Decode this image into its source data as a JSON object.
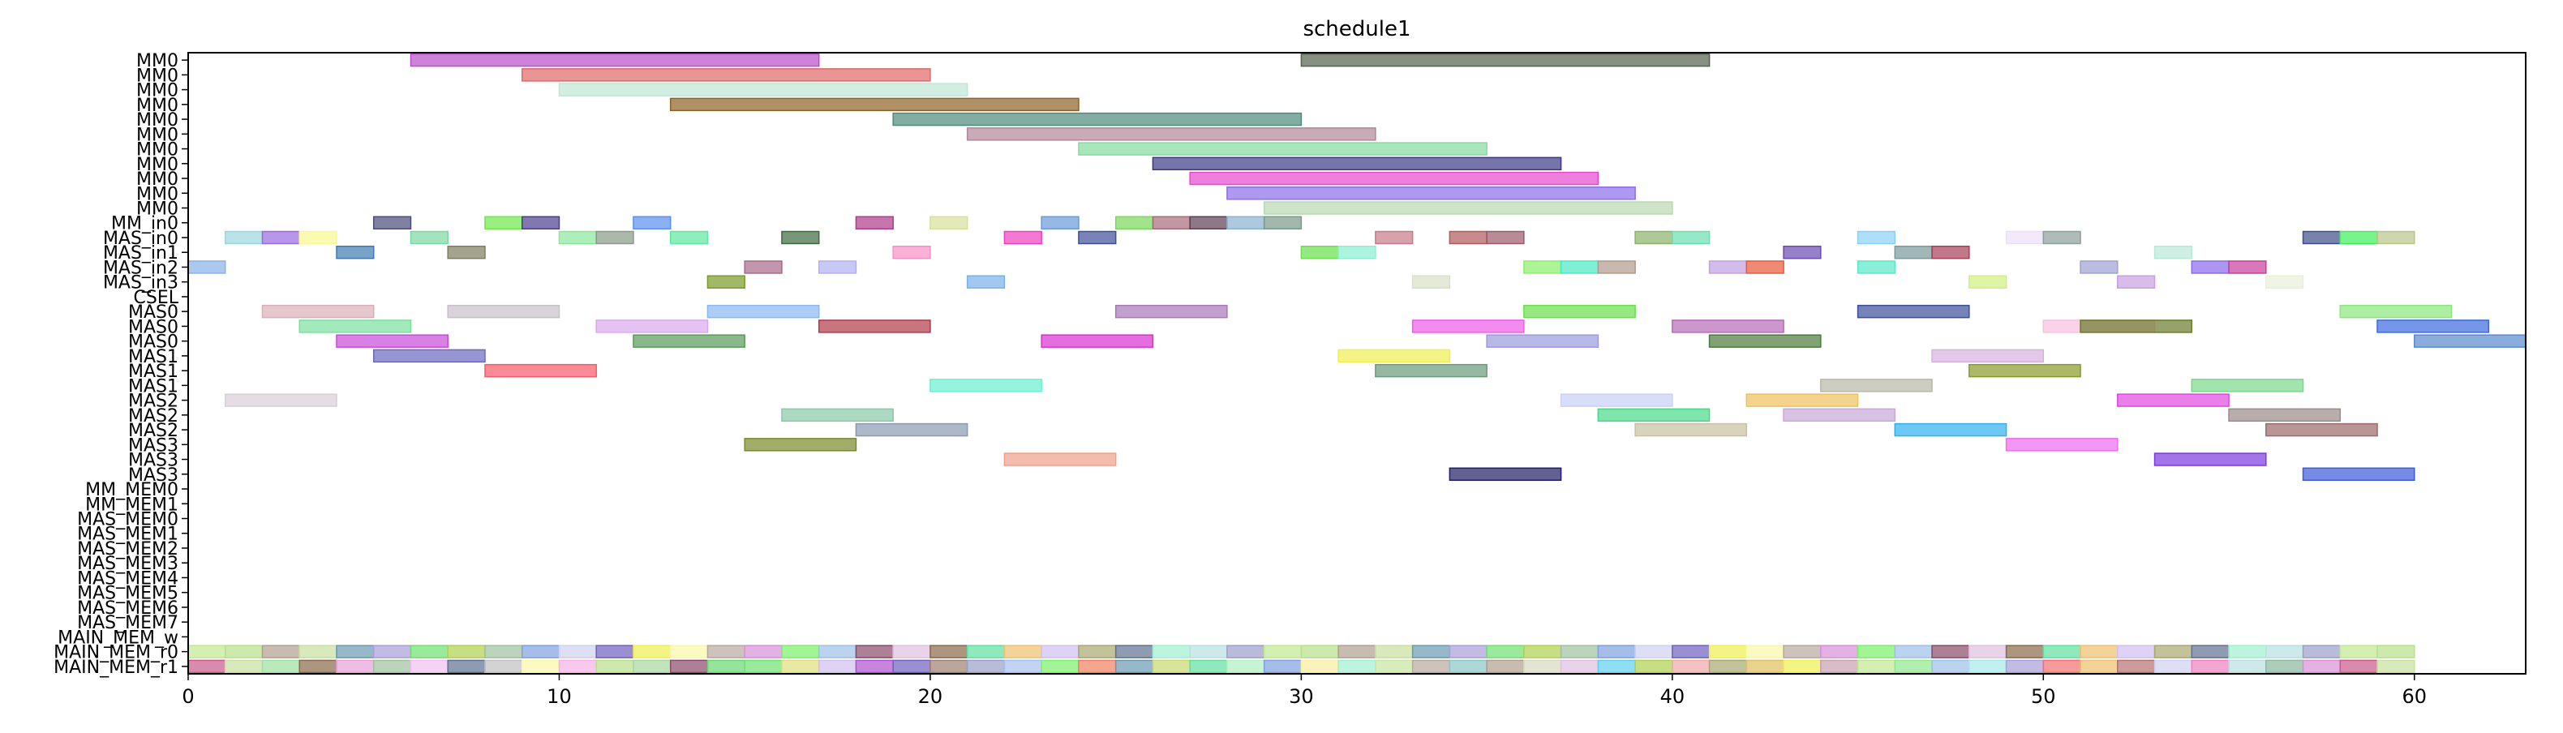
{
  "chart_data": {
    "type": "gantt",
    "title": "schedule1",
    "xlabel": "",
    "ylabel": "",
    "xlim": [
      0,
      63
    ],
    "x_ticks": [
      0,
      10,
      20,
      30,
      40,
      50,
      60
    ],
    "grid": false,
    "rows": [
      "MM0",
      "MM0",
      "MM0",
      "MM0",
      "MM0",
      "MM0",
      "MM0",
      "MM0",
      "MM0",
      "MM0",
      "MM0",
      "MM_in0",
      "MAS_in0",
      "MAS_in1",
      "MAS_in2",
      "MAS_in3",
      "CSEL",
      "MAS0",
      "MAS0",
      "MAS0",
      "MAS1",
      "MAS1",
      "MAS1",
      "MAS2",
      "MAS2",
      "MAS2",
      "MAS3",
      "MAS3",
      "MAS3",
      "MM_MEM0",
      "MM_MEM1",
      "MAS_MEM0",
      "MAS_MEM1",
      "MAS_MEM2",
      "MAS_MEM3",
      "MAS_MEM4",
      "MAS_MEM5",
      "MAS_MEM6",
      "MAS_MEM7",
      "MAIN_MEM_w",
      "MAIN_MEM_r0",
      "MAIN_MEM_r1"
    ],
    "bars": [
      [
        0,
        6,
        17,
        "#b84fc8"
      ],
      [
        0,
        30,
        41,
        "#56604e"
      ],
      [
        1,
        9,
        20,
        "#e06868"
      ],
      [
        2,
        10,
        21,
        "#bfe6d6"
      ],
      [
        3,
        13,
        24,
        "#8e6226"
      ],
      [
        4,
        19,
        30,
        "#4e8a7a"
      ],
      [
        5,
        21,
        32,
        "#b08898"
      ],
      [
        6,
        24,
        35,
        "#86dc9e"
      ],
      [
        7,
        26,
        37,
        "#3a3a84"
      ],
      [
        8,
        27,
        38,
        "#e848d0"
      ],
      [
        9,
        28,
        39,
        "#8a6ee8"
      ],
      [
        10,
        29,
        40,
        "#b8d8b0"
      ],
      [
        11,
        5,
        6,
        "#4a4a7c"
      ],
      [
        11,
        8,
        9,
        "#6ee84a"
      ],
      [
        11,
        9,
        10,
        "#4a3e8c"
      ],
      [
        11,
        12,
        13,
        "#5a8ef0"
      ],
      [
        11,
        18,
        19,
        "#b03a8c"
      ],
      [
        11,
        20,
        21,
        "#d8e09a"
      ],
      [
        11,
        23,
        24,
        "#6a9ad8"
      ],
      [
        11,
        25,
        26,
        "#7ad85a"
      ],
      [
        11,
        26,
        27,
        "#a86a7a"
      ],
      [
        11,
        27,
        28,
        "#5e3e52"
      ],
      [
        11,
        28,
        29,
        "#8ab2d0"
      ],
      [
        11,
        29,
        30,
        "#7a9a8a"
      ],
      [
        12,
        1,
        2,
        "#9ad8e0"
      ],
      [
        12,
        2,
        3,
        "#9a6ae0"
      ],
      [
        12,
        3,
        4,
        "#f8f890"
      ],
      [
        12,
        6,
        7,
        "#7ad8a2"
      ],
      [
        12,
        10,
        11,
        "#8ae89a"
      ],
      [
        12,
        11,
        12,
        "#8a9a8a"
      ],
      [
        12,
        13,
        14,
        "#5ee8a0"
      ],
      [
        12,
        16,
        17,
        "#3e6a3e"
      ],
      [
        12,
        22,
        23,
        "#f040c0"
      ],
      [
        12,
        24,
        25,
        "#3e4e9a"
      ],
      [
        12,
        32,
        33,
        "#c87a8a"
      ],
      [
        12,
        34,
        35,
        "#b05a5a"
      ],
      [
        12,
        35,
        36,
        "#9a5a6a"
      ],
      [
        12,
        39,
        40,
        "#8ab46a"
      ],
      [
        12,
        40,
        41,
        "#6ae0b0"
      ],
      [
        12,
        45,
        46,
        "#8ad0f8"
      ],
      [
        12,
        49,
        50,
        "#ece0f8"
      ],
      [
        12,
        50,
        51,
        "#8aa09a"
      ],
      [
        12,
        57,
        58,
        "#3e4e8a"
      ],
      [
        12,
        58,
        59,
        "#3ef05a"
      ],
      [
        12,
        59,
        60,
        "#b8c48a"
      ],
      [
        13,
        4,
        5,
        "#3e7ab0"
      ],
      [
        13,
        7,
        8,
        "#7e7e5e"
      ],
      [
        13,
        19,
        20,
        "#f890c8"
      ],
      [
        13,
        30,
        31,
        "#6ae04a"
      ],
      [
        13,
        31,
        32,
        "#8af0d0"
      ],
      [
        13,
        43,
        44,
        "#6a4ab0"
      ],
      [
        13,
        46,
        47,
        "#7a9a9a"
      ],
      [
        13,
        47,
        48,
        "#a83e5a"
      ],
      [
        13,
        53,
        54,
        "#b8e8d8"
      ],
      [
        14,
        0,
        1,
        "#8ab0e8"
      ],
      [
        14,
        15,
        16,
        "#a86a8a"
      ],
      [
        14,
        17,
        18,
        "#b0b0f0"
      ],
      [
        14,
        36,
        37,
        "#8af06a"
      ],
      [
        14,
        37,
        38,
        "#4ae8c0"
      ],
      [
        14,
        38,
        39,
        "#b09a8a"
      ],
      [
        14,
        41,
        42,
        "#c0a0e0"
      ],
      [
        14,
        42,
        43,
        "#e85a3a"
      ],
      [
        14,
        45,
        46,
        "#5ae8c8"
      ],
      [
        14,
        51,
        52,
        "#a0a0d0"
      ],
      [
        14,
        54,
        55,
        "#8a6ae8"
      ],
      [
        14,
        55,
        56,
        "#c83e9a"
      ],
      [
        15,
        14,
        15,
        "#7a9a2a"
      ],
      [
        15,
        21,
        22,
        "#7ab0e8"
      ],
      [
        15,
        33,
        34,
        "#d8e0c8"
      ],
      [
        15,
        48,
        49,
        "#d0f080"
      ],
      [
        15,
        52,
        53,
        "#c8a0e0"
      ],
      [
        15,
        56,
        57,
        "#e8f0d8"
      ],
      [
        17,
        2,
        5,
        "#d8b0b8"
      ],
      [
        17,
        7,
        10,
        "#c8c0c8"
      ],
      [
        17,
        14,
        17,
        "#8ab8f0"
      ],
      [
        17,
        25,
        28,
        "#a878b8"
      ],
      [
        17,
        36,
        39,
        "#6ae04a"
      ],
      [
        17,
        45,
        48,
        "#3a4e9a"
      ],
      [
        17,
        58,
        61,
        "#8ae87a"
      ],
      [
        18,
        3,
        6,
        "#7ae0a0"
      ],
      [
        18,
        11,
        14,
        "#d8a8f0"
      ],
      [
        18,
        17,
        20,
        "#b03a4a"
      ],
      [
        18,
        33,
        36,
        "#f05ae8"
      ],
      [
        18,
        40,
        43,
        "#b86ab8"
      ],
      [
        18,
        50,
        53,
        "#f8c0e0"
      ],
      [
        18,
        51,
        54,
        "#6a7a2a"
      ],
      [
        18,
        59,
        62,
        "#3a6ae0"
      ],
      [
        19,
        4,
        7,
        "#c84ad8"
      ],
      [
        19,
        12,
        15,
        "#5a9a5a"
      ],
      [
        19,
        23,
        26,
        "#d830d0"
      ],
      [
        19,
        35,
        38,
        "#9a9ae0"
      ],
      [
        19,
        41,
        44,
        "#4a7a3a"
      ],
      [
        19,
        60,
        63,
        "#5a8ad0"
      ],
      [
        20,
        5,
        8,
        "#6a6ac0"
      ],
      [
        20,
        31,
        34,
        "#f0f050"
      ],
      [
        20,
        47,
        50,
        "#d8b0e0"
      ],
      [
        21,
        8,
        11,
        "#f85a6a"
      ],
      [
        21,
        32,
        35,
        "#6a9a7a"
      ],
      [
        21,
        48,
        51,
        "#8a9a2a"
      ],
      [
        22,
        20,
        23,
        "#6af0d0"
      ],
      [
        22,
        44,
        47,
        "#b8b8a8"
      ],
      [
        22,
        54,
        57,
        "#7ad88a"
      ],
      [
        23,
        1,
        4,
        "#d8d0d8"
      ],
      [
        23,
        37,
        40,
        "#c8d0f8"
      ],
      [
        23,
        42,
        45,
        "#f0c060"
      ],
      [
        23,
        52,
        55,
        "#e048e0"
      ],
      [
        24,
        16,
        19,
        "#8ac8a8"
      ],
      [
        24,
        38,
        41,
        "#4ad88a"
      ],
      [
        24,
        43,
        46,
        "#c8a8d8"
      ],
      [
        24,
        55,
        58,
        "#9a8a8a"
      ],
      [
        25,
        18,
        21,
        "#8a9ab0"
      ],
      [
        25,
        39,
        42,
        "#c8c0a0"
      ],
      [
        25,
        46,
        49,
        "#30b0f0"
      ],
      [
        25,
        56,
        59,
        "#9a6a6a"
      ],
      [
        26,
        15,
        18,
        "#7a8a2a"
      ],
      [
        26,
        49,
        52,
        "#f06af0"
      ],
      [
        27,
        22,
        25,
        "#f0a08a"
      ],
      [
        27,
        53,
        56,
        "#7a3ae0"
      ],
      [
        28,
        34,
        37,
        "#1e1e6a"
      ],
      [
        28,
        57,
        60,
        "#3a5ad8"
      ]
    ],
    "memory_rows": [
      39,
      40,
      41
    ],
    "memory_palette": [
      "#c8e6a0",
      "#f8f8a8",
      "#c8a0b0",
      "#9aa0c8",
      "#8ab8a0",
      "#b8a8a0",
      "#f8b0e8",
      "#c0e890",
      "#a8c0f0",
      "#d890d8",
      "#8ac8c8",
      "#b8e08a",
      "#90e890",
      "#7af06a",
      "#c85a8a",
      "#b0a090",
      "#a8d8a0",
      "#a0c0e8",
      "#f08060",
      "#c8e0a0",
      "#d8d8c0",
      "#8a4a6a",
      "#a8e8e8",
      "#6a9ab0",
      "#a0e0a0",
      "#e0c0e0",
      "#6ad870",
      "#a8a0d8",
      "#c8d870",
      "#8a6a4a",
      "#60d0f0",
      "#70e070",
      "#f07070",
      "#60e0a0",
      "#e8a0d8",
      "#b0d050",
      "#e0e080",
      "#f0c070",
      "#b0f0c0",
      "#a0c0a0",
      "#f0a8a8",
      "#d0c0f0",
      "#b87070",
      "#80a0e0",
      "#f0c0f0",
      "#a8a870",
      "#b050d0",
      "#d0d0f0",
      "#f8f0a0",
      "#607090",
      "#e0c060",
      "#7060c0",
      "#f080c0",
      "#a0f0d0",
      "#c0c0c0",
      "#f0f050",
      "#a08070",
      "#b8e0e0"
    ]
  }
}
